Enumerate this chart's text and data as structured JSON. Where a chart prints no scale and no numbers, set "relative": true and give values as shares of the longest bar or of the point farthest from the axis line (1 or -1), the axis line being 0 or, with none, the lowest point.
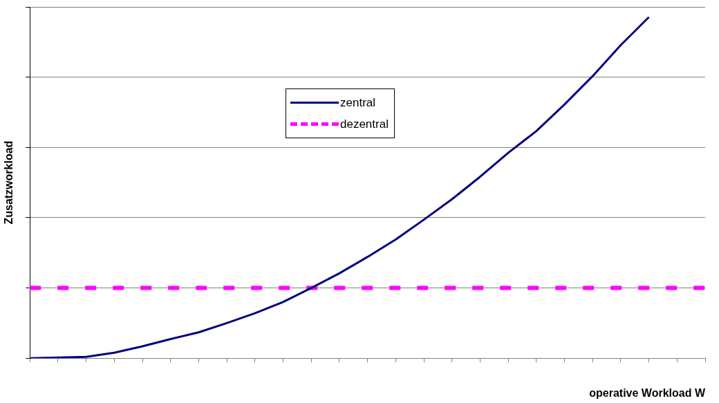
{
  "chart_data": {
    "type": "line",
    "xlabel": "operative Workload W",
    "ylabel": "Zusatzworkload",
    "relative": true,
    "grid": "y",
    "legend": "top",
    "marker": "none",
    "categories": [
      null,
      null,
      null,
      null,
      null,
      null,
      null,
      null,
      null,
      null,
      null,
      null,
      null,
      null,
      null,
      null,
      null,
      null,
      null,
      null,
      null,
      null,
      null,
      null,
      null
    ],
    "series": [
      {
        "name": "zentral",
        "color": "#000080",
        "line_style": "solid",
        "values": [
          0,
          0.002,
          0.004,
          0.016,
          0.035,
          0.056,
          0.076,
          0.103,
          0.132,
          0.165,
          0.206,
          0.249,
          0.297,
          0.348,
          0.406,
          0.466,
          0.532,
          0.602,
          0.666,
          0.744,
          0.827,
          0.918,
          1,
          null,
          null
        ]
      },
      {
        "name": "dezentral",
        "color": "#ff00ff",
        "line_style": "dashed",
        "values": [
          0.206,
          0.206,
          0.206,
          0.206,
          0.206,
          0.206,
          0.206,
          0.206,
          0.206,
          0.206,
          0.206,
          0.206,
          0.206,
          0.206,
          0.206,
          0.206,
          0.206,
          0.206,
          0.206,
          0.206,
          0.206,
          0.206,
          0.206,
          0.206,
          0.206
        ]
      }
    ]
  }
}
